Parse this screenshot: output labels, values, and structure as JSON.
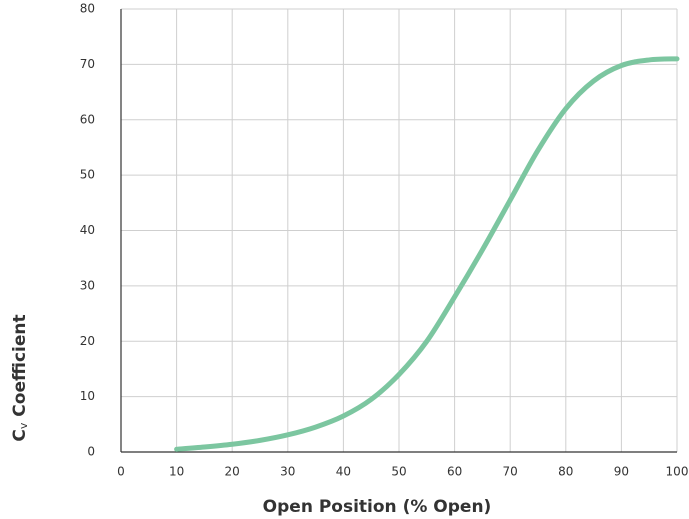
{
  "chart_data": {
    "type": "line",
    "xlabel": "Open Position (% Open)",
    "ylabel": [
      "C",
      "v",
      " Coefficient"
    ],
    "x": [
      10,
      15,
      20,
      25,
      30,
      35,
      40,
      45,
      50,
      55,
      60,
      65,
      70,
      75,
      80,
      85,
      90,
      95,
      100
    ],
    "series": [
      {
        "color": "#7cc6a0",
        "values": [
          0.5,
          0.9,
          1.4,
          2.1,
          3.1,
          4.5,
          6.5,
          9.5,
          14,
          20,
          28,
          36.5,
          45.5,
          54.5,
          62,
          67,
          69.8,
          70.8,
          71
        ]
      }
    ],
    "xlim": [
      0,
      100
    ],
    "xticks": [
      0,
      10,
      20,
      30,
      40,
      50,
      60,
      70,
      80,
      90,
      100
    ],
    "ylim": [
      0,
      80
    ],
    "yticks": [
      0,
      10,
      20,
      30,
      40,
      50,
      60,
      70,
      80
    ],
    "grid": true
  }
}
